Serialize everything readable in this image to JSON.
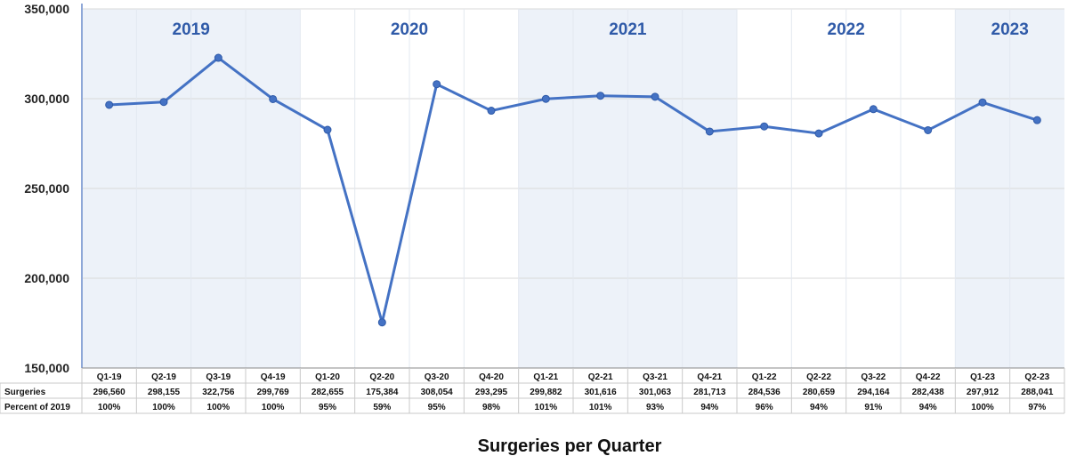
{
  "chart_data": {
    "type": "line",
    "title": "Surgeries per Quarter",
    "categories": [
      "Q1-19",
      "Q2-19",
      "Q3-19",
      "Q4-19",
      "Q1-20",
      "Q2-20",
      "Q3-20",
      "Q4-20",
      "Q1-21",
      "Q2-21",
      "Q3-21",
      "Q4-21",
      "Q1-22",
      "Q2-22",
      "Q3-22",
      "Q4-22",
      "Q1-23",
      "Q2-23"
    ],
    "series": [
      {
        "values": [
          296560,
          298155,
          322756,
          299769,
          282655,
          175384,
          308054,
          293295,
          299882,
          301616,
          301063,
          281713,
          284536,
          280659,
          294164,
          282438,
          297912,
          288041
        ]
      }
    ],
    "ylim": [
      150000,
      350000
    ],
    "yticks": [
      "150,000",
      "200,000",
      "250,000",
      "300,000",
      "350,000"
    ],
    "years": [
      {
        "label": "2019",
        "start": 0,
        "end": 3
      },
      {
        "label": "2020",
        "start": 4,
        "end": 7
      },
      {
        "label": "2021",
        "start": 8,
        "end": 11
      },
      {
        "label": "2022",
        "start": 12,
        "end": 15
      },
      {
        "label": "2023",
        "start": 16,
        "end": 17
      }
    ],
    "table": {
      "rows": [
        {
          "label": "Surgeries",
          "cells": [
            "296,560",
            "298,155",
            "322,756",
            "299,769",
            "282,655",
            "175,384",
            "308,054",
            "293,295",
            "299,882",
            "301,616",
            "301,063",
            "281,713",
            "284,536",
            "280,659",
            "294,164",
            "282,438",
            "297,912",
            "288,041"
          ]
        },
        {
          "label": "Percent of 2019",
          "cells": [
            "100%",
            "100%",
            "100%",
            "100%",
            "95%",
            "59%",
            "95%",
            "98%",
            "101%",
            "101%",
            "93%",
            "94%",
            "96%",
            "94%",
            "91%",
            "94%",
            "100%",
            "97%"
          ]
        }
      ]
    },
    "colors": {
      "line": "#4472c4",
      "shade": "#edf2f9",
      "year_text": "#2f5aa8",
      "grid": "#d9d9d9"
    },
    "grid": true
  }
}
